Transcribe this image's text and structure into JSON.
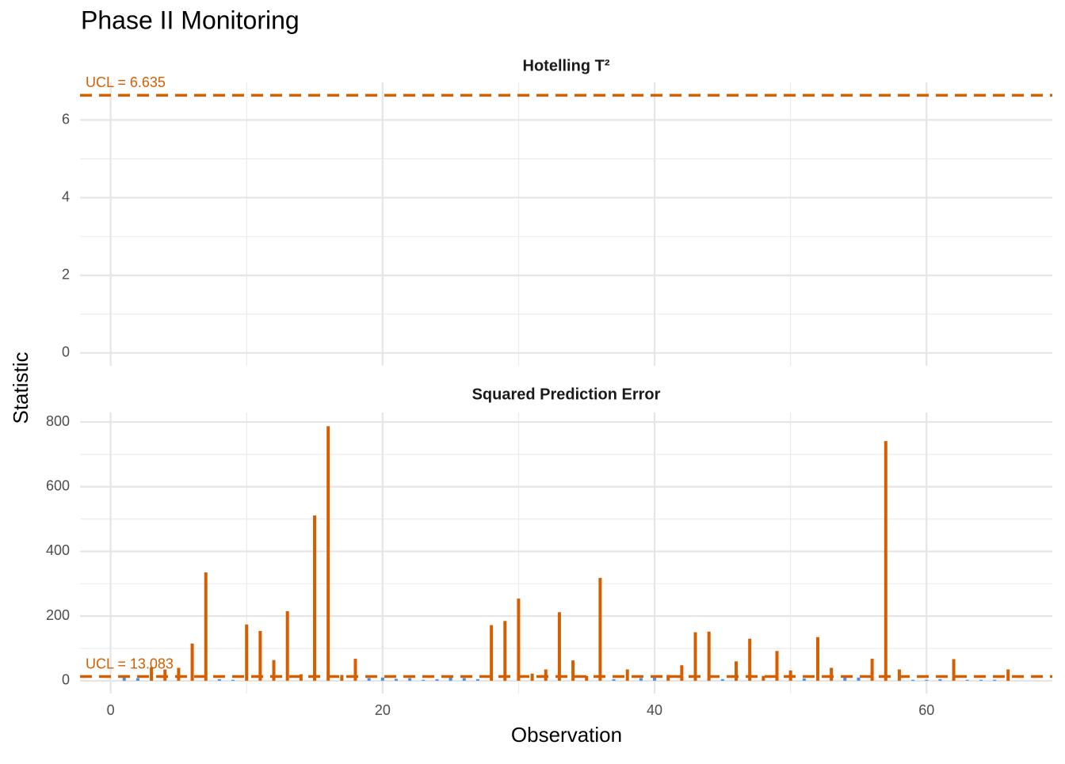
{
  "title": "Phase II Monitoring",
  "x_label": "Observation",
  "y_label": "Statistic",
  "chart_data": [
    {
      "type": "bar",
      "title": "Hotelling T²",
      "ucl": 6.635,
      "ucl_label": "UCL =  6.635",
      "ucl_color": "#d55e00",
      "xlim": [
        -2.25,
        69.25
      ],
      "xticks": [
        0,
        20,
        40,
        60
      ],
      "ylim": [
        -0.33,
        6.97
      ],
      "yticks": [
        0,
        2,
        4,
        6
      ],
      "grid": true,
      "minor_grid": true
    },
    {
      "type": "bar",
      "title": "Squared Prediction Error",
      "ucl": 13.083,
      "ucl_label": "UCL = 13.083",
      "ucl_color": "#d55e00",
      "above_color": "#d55e00",
      "below_color": "#4a90e2",
      "xlim": [
        -2.25,
        69.25
      ],
      "xticks": [
        0,
        20,
        40,
        60
      ],
      "ylim": [
        -39.5,
        829.5
      ],
      "yticks": [
        0,
        200,
        400,
        600,
        800
      ],
      "grid": true,
      "minor_grid": true,
      "x": [
        1,
        2,
        3,
        4,
        5,
        6,
        7,
        8,
        9,
        10,
        11,
        12,
        13,
        14,
        15,
        16,
        17,
        18,
        19,
        20,
        21,
        22,
        23,
        24,
        25,
        26,
        27,
        28,
        29,
        30,
        31,
        32,
        33,
        34,
        35,
        36,
        37,
        38,
        39,
        40,
        41,
        42,
        43,
        44,
        45,
        46,
        47,
        48,
        49,
        50,
        51,
        52,
        53,
        54,
        55,
        56,
        57,
        58,
        59,
        60,
        61,
        62,
        63,
        64,
        65,
        66
      ],
      "values": [
        10,
        8,
        42,
        35,
        40,
        115,
        335,
        5,
        3,
        174,
        154,
        64,
        215,
        20,
        511,
        787,
        18,
        68,
        8,
        10,
        6,
        8,
        3,
        5,
        10,
        8,
        5,
        172,
        185,
        254,
        22,
        35,
        212,
        63,
        15,
        318,
        5,
        35,
        8,
        12,
        18,
        48,
        150,
        152,
        5,
        60,
        130,
        15,
        92,
        32,
        7,
        135,
        40,
        10,
        10,
        68,
        741,
        35,
        3,
        3,
        5,
        67,
        3,
        3,
        3,
        35
      ]
    }
  ]
}
